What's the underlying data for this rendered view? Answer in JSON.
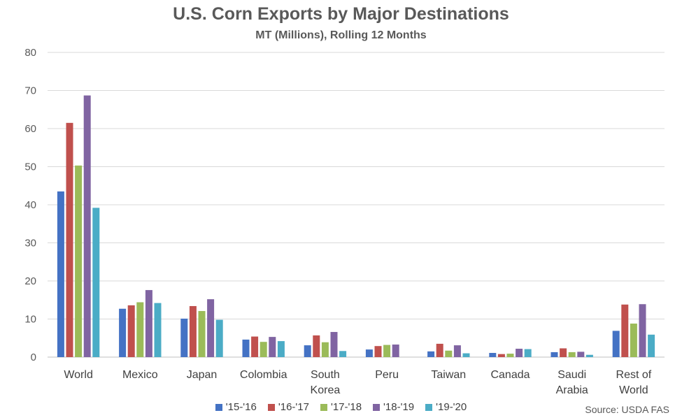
{
  "chart_data": {
    "type": "bar",
    "title": "U.S. Corn Exports by Major Destinations",
    "subtitle": "MT (Millions), Rolling 12 Months",
    "source": "Source: USDA FAS",
    "xlabel": "",
    "ylabel": "",
    "ylim": [
      0,
      80
    ],
    "yticks": [
      0,
      10,
      20,
      30,
      40,
      50,
      60,
      70,
      80
    ],
    "grid": true,
    "legend_position": "bottom",
    "categories": [
      [
        "World"
      ],
      [
        "Mexico"
      ],
      [
        "Japan"
      ],
      [
        "Colombia"
      ],
      [
        "South",
        "Korea"
      ],
      [
        "Peru"
      ],
      [
        "Taiwan"
      ],
      [
        "Canada"
      ],
      [
        "Saudi",
        "Arabia"
      ],
      [
        "Rest of",
        "World"
      ]
    ],
    "series": [
      {
        "name": "'15-'16",
        "color": "#4472C4",
        "values": [
          43.5,
          12.7,
          10.1,
          4.6,
          3.1,
          2.0,
          1.5,
          1.1,
          1.3,
          6.9
        ]
      },
      {
        "name": "'16-'17",
        "color": "#C0504D",
        "values": [
          61.5,
          13.6,
          13.4,
          5.4,
          5.7,
          2.9,
          3.5,
          0.8,
          2.3,
          13.8
        ]
      },
      {
        "name": "'17-'18",
        "color": "#9BBB59",
        "values": [
          50.3,
          14.4,
          12.1,
          4.0,
          3.9,
          3.2,
          1.7,
          0.9,
          1.3,
          8.8
        ]
      },
      {
        "name": "'18-'19",
        "color": "#8064A2",
        "values": [
          68.7,
          17.6,
          15.2,
          5.3,
          6.6,
          3.3,
          3.1,
          2.2,
          1.4,
          13.9
        ]
      },
      {
        "name": "'19-'20",
        "color": "#4BACC6",
        "values": [
          39.2,
          14.2,
          9.8,
          4.2,
          1.6,
          0,
          1.0,
          2.1,
          0.6,
          5.9
        ]
      }
    ]
  }
}
